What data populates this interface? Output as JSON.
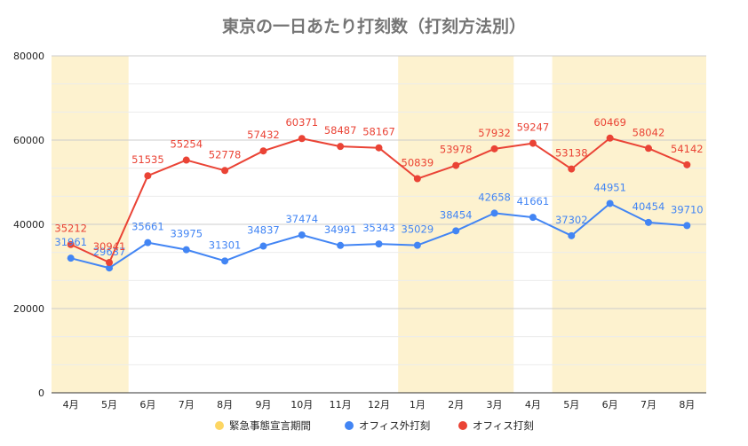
{
  "chart_data": {
    "type": "line",
    "title": "東京の一日あたり打刻数（打刻方法別）",
    "categories": [
      "4月",
      "5月",
      "6月",
      "7月",
      "8月",
      "9月",
      "10月",
      "11月",
      "12月",
      "1月",
      "2月",
      "3月",
      "4月",
      "5月",
      "6月",
      "7月",
      "8月"
    ],
    "ylim": [
      0,
      80000
    ],
    "yticks": [
      0,
      20000,
      40000,
      60000,
      80000
    ],
    "grid": true,
    "legend_position": "bottom",
    "emergency_periods": [
      [
        0,
        1
      ],
      [
        9,
        11
      ],
      [
        13,
        16
      ]
    ],
    "series": [
      {
        "name": "緊急事態宣言期間",
        "color": "#fdd663",
        "kind": "band"
      },
      {
        "name": "オフィス外打刻",
        "color": "#4285f4",
        "kind": "line",
        "values": [
          31961,
          29637,
          35661,
          33975,
          31301,
          34837,
          37474,
          34991,
          35343,
          35029,
          38454,
          42658,
          41661,
          37302,
          44951,
          40454,
          39710
        ]
      },
      {
        "name": "オフィス打刻",
        "color": "#ea4335",
        "kind": "line",
        "values": [
          35212,
          30941,
          51535,
          55254,
          52778,
          57432,
          60371,
          58487,
          58167,
          50839,
          53978,
          57932,
          59247,
          53138,
          60469,
          58042,
          54142
        ]
      }
    ]
  }
}
